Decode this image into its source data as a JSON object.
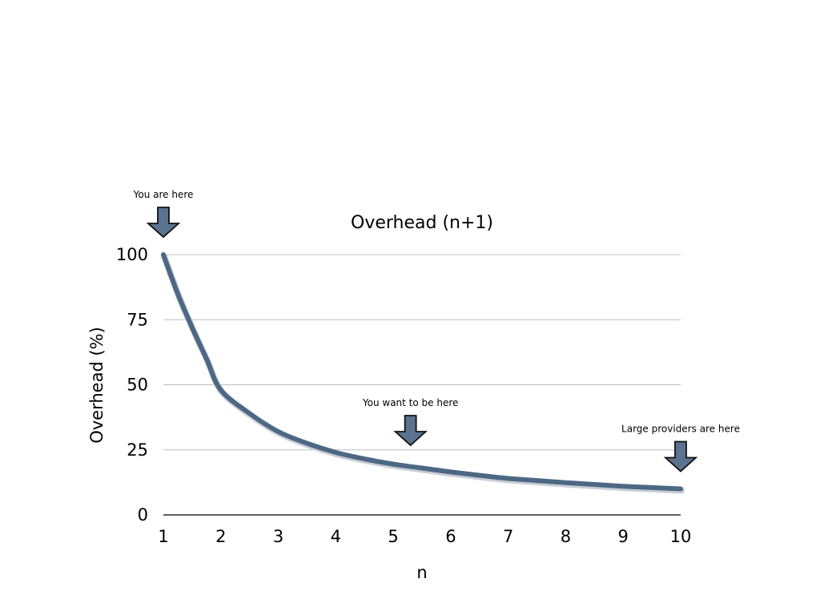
{
  "chart_data": {
    "type": "line",
    "title": "Overhead (n+1)",
    "xlabel": "n",
    "ylabel": "Overhead (%)",
    "xlim": [
      1,
      10
    ],
    "ylim": [
      0,
      100
    ],
    "x_ticks": [
      "1",
      "2",
      "3",
      "4",
      "5",
      "6",
      "7",
      "8",
      "9",
      "10"
    ],
    "y_ticks": [
      "0",
      "25",
      "50",
      "75",
      "100"
    ],
    "grid": true,
    "series": [
      {
        "color": "#4d6884",
        "x": [
          1,
          1.25,
          1.5,
          1.75,
          2,
          2.5,
          3,
          3.5,
          4,
          4.5,
          5,
          5.5,
          6,
          6.5,
          7,
          7.5,
          8,
          8.5,
          9,
          9.5,
          10
        ],
        "y": [
          100,
          85,
          72,
          60,
          48,
          39,
          32,
          27.5,
          24,
          21.5,
          19.5,
          18,
          16.5,
          15.2,
          14,
          13.2,
          12.4,
          11.7,
          11,
          10.5,
          10
        ]
      }
    ],
    "annotations": [
      {
        "text": "You are here",
        "x": 1,
        "y": 100
      },
      {
        "text": "You want to be here",
        "x": 5.3,
        "y": 20
      },
      {
        "text": "Large providers are here",
        "x": 10,
        "y": 10
      }
    ],
    "arrow_color": "#5c7390"
  }
}
